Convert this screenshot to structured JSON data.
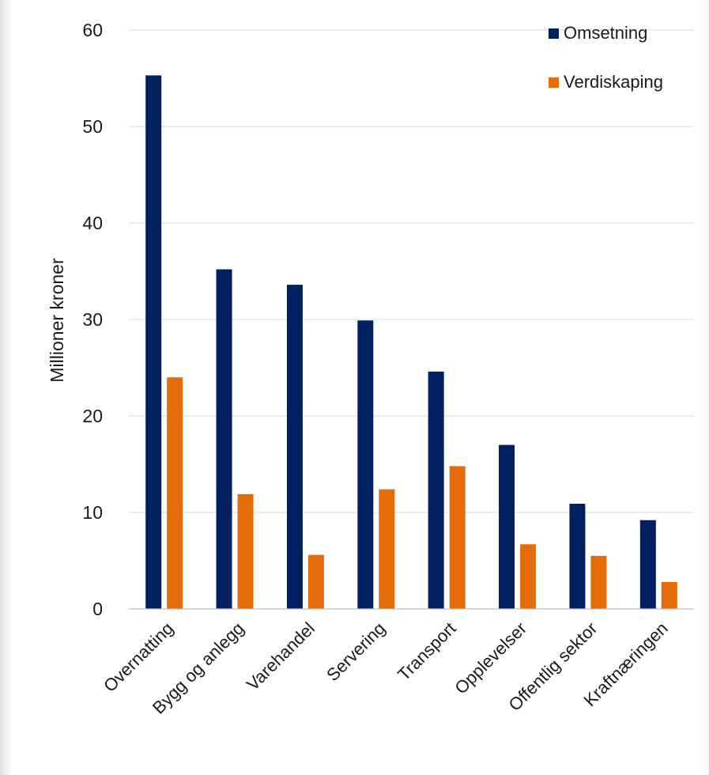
{
  "chart_data": {
    "type": "bar",
    "title": "",
    "xlabel": "",
    "ylabel": "Millioner kroner",
    "ylim": [
      0,
      60
    ],
    "yticks": [
      0,
      10,
      20,
      30,
      40,
      50,
      60
    ],
    "grid": true,
    "legend_position": "top-right",
    "categories": [
      "Overnatting",
      "Bygg og anlegg",
      "Varehandel",
      "Servering",
      "Transport",
      "Opplevelser",
      "Offentlig sektor",
      "Kraftnæringen"
    ],
    "series": [
      {
        "name": "Omsetning",
        "color": "#002060",
        "values": [
          55.3,
          35.2,
          33.6,
          29.9,
          24.6,
          17.0,
          10.9,
          9.2
        ]
      },
      {
        "name": "Verdiskaping",
        "color": "#e46c0a",
        "values": [
          24.0,
          11.9,
          5.6,
          12.4,
          14.8,
          6.7,
          5.5,
          2.8
        ]
      }
    ]
  }
}
